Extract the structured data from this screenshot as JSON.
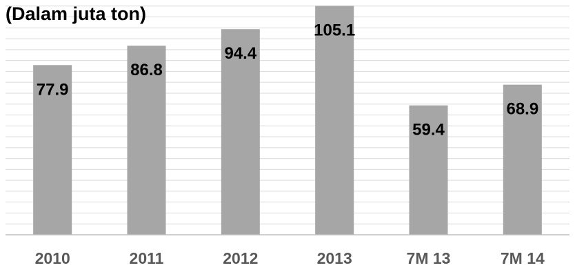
{
  "chart_data": {
    "type": "bar",
    "title": "(Dalam juta ton)",
    "categories": [
      "2010",
      "2011",
      "2012",
      "2013",
      "7M 13",
      "7M 14"
    ],
    "values": [
      77.9,
      86.8,
      94.4,
      105.1,
      59.4,
      68.9
    ],
    "xlabel": "",
    "ylabel": "",
    "ylim": [
      0,
      110
    ],
    "grid": true,
    "legend": "none",
    "colors": {
      "bar": "#a6a6a6",
      "grid": "#d9d9d9",
      "axis": "#bfbfbf",
      "label": "#000000",
      "category": "#595959"
    }
  }
}
